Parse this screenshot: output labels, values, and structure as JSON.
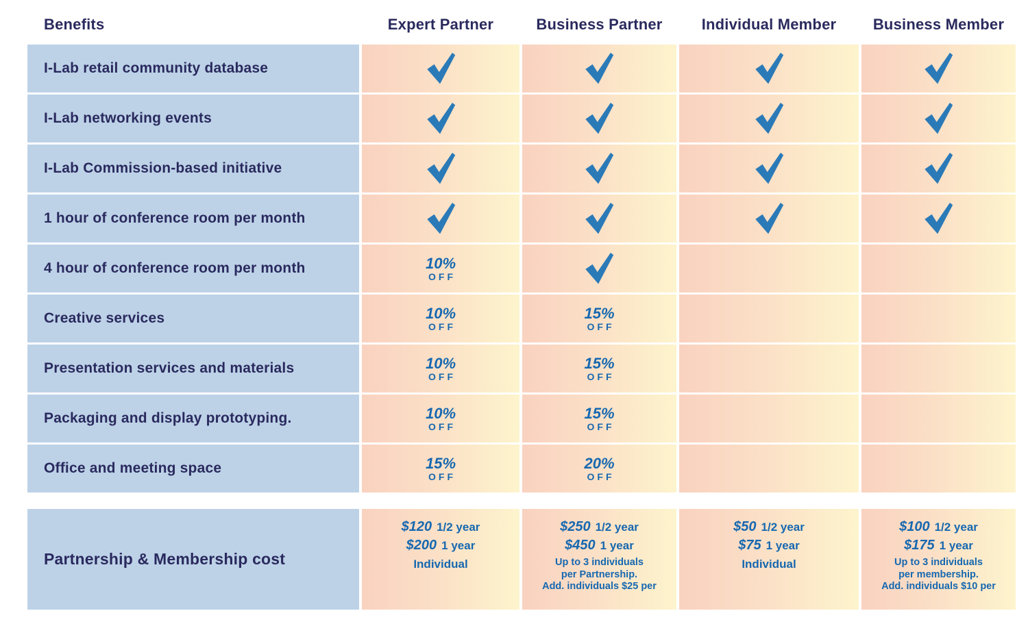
{
  "colors": {
    "benefit_cell_bg": "#bdd2e7",
    "heading_navy": "#2a2a5e",
    "accent_blue_text": "#1668b0",
    "check_blue": "#2b7ab8",
    "column_gradient_left": "#f9d2c0",
    "column_gradient_right": "#fdf4cd"
  },
  "table": {
    "benefits_header": "Benefits",
    "columns": [
      {
        "id": "expert-partner",
        "label": "Expert Partner"
      },
      {
        "id": "business-partner",
        "label": "Business Partner"
      },
      {
        "id": "individual-member",
        "label": "Individual Member"
      },
      {
        "id": "business-member",
        "label": "Business Member"
      }
    ],
    "rows": [
      {
        "benefit": "I-Lab retail community database",
        "cells": [
          {
            "type": "check"
          },
          {
            "type": "check"
          },
          {
            "type": "check"
          },
          {
            "type": "check"
          }
        ]
      },
      {
        "benefit": "I-Lab networking events",
        "cells": [
          {
            "type": "check"
          },
          {
            "type": "check"
          },
          {
            "type": "check"
          },
          {
            "type": "check"
          }
        ]
      },
      {
        "benefit": "I-Lab Commission-based initiative",
        "cells": [
          {
            "type": "check"
          },
          {
            "type": "check"
          },
          {
            "type": "check"
          },
          {
            "type": "check"
          }
        ]
      },
      {
        "benefit": "1 hour of conference room per month",
        "cells": [
          {
            "type": "check"
          },
          {
            "type": "check"
          },
          {
            "type": "check"
          },
          {
            "type": "check"
          }
        ]
      },
      {
        "benefit": "4 hour of conference room per month",
        "cells": [
          {
            "type": "discount",
            "percent": "10%",
            "off": "OFF"
          },
          {
            "type": "check"
          },
          {
            "type": "none"
          },
          {
            "type": "none"
          }
        ]
      },
      {
        "benefit": "Creative services",
        "cells": [
          {
            "type": "discount",
            "percent": "10%",
            "off": "OFF"
          },
          {
            "type": "discount",
            "percent": "15%",
            "off": "OFF"
          },
          {
            "type": "none"
          },
          {
            "type": "none"
          }
        ]
      },
      {
        "benefit": "Presentation services and materials",
        "cells": [
          {
            "type": "discount",
            "percent": "10%",
            "off": "OFF"
          },
          {
            "type": "discount",
            "percent": "15%",
            "off": "OFF"
          },
          {
            "type": "none"
          },
          {
            "type": "none"
          }
        ]
      },
      {
        "benefit": "Packaging and display prototyping.",
        "cells": [
          {
            "type": "discount",
            "percent": "10%",
            "off": "OFF"
          },
          {
            "type": "discount",
            "percent": "15%",
            "off": "OFF"
          },
          {
            "type": "none"
          },
          {
            "type": "none"
          }
        ]
      },
      {
        "benefit": "Office and meeting space",
        "cells": [
          {
            "type": "discount",
            "percent": "15%",
            "off": "OFF"
          },
          {
            "type": "discount",
            "percent": "20%",
            "off": "OFF"
          },
          {
            "type": "none"
          },
          {
            "type": "none"
          }
        ]
      }
    ],
    "pricing_row": {
      "label": "Partnership & Membership cost",
      "cells": [
        {
          "lines": [
            {
              "price": "$120",
              "term": "1/2 year"
            },
            {
              "price": "$200",
              "term": "1 year"
            }
          ],
          "notes": [
            "Individual"
          ]
        },
        {
          "lines": [
            {
              "price": "$250",
              "term": "1/2 year"
            },
            {
              "price": "$450",
              "term": "1 year"
            }
          ],
          "notes": [
            "Up to 3 individuals",
            "per Partnership.",
            "Add. individuals $25 per"
          ]
        },
        {
          "lines": [
            {
              "price": "$50",
              "term": "1/2 year"
            },
            {
              "price": "$75",
              "term": "1 year"
            }
          ],
          "notes": [
            "Individual"
          ]
        },
        {
          "lines": [
            {
              "price": "$100",
              "term": "1/2 year"
            },
            {
              "price": "$175",
              "term": "1 year"
            }
          ],
          "notes": [
            "Up to 3 individuals",
            "per membership.",
            "Add. individuals $10 per"
          ]
        }
      ]
    }
  }
}
